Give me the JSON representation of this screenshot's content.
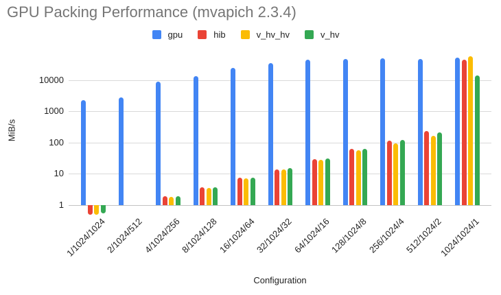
{
  "title": "GPU Packing Performance (mvapich 2.3.4)",
  "chart_data": {
    "type": "bar",
    "title": "GPU Packing Performance (mvapich 2.3.4)",
    "xlabel": "Configuration",
    "ylabel": "MiB/s",
    "y_scale": "log",
    "y_ticks": [
      1,
      10,
      100,
      1000,
      10000
    ],
    "ylim": [
      0.45,
      63000
    ],
    "grid": true,
    "legend_position": "top",
    "categories": [
      "1/1024/1024",
      "2/1024/512",
      "4/1024/256",
      "8/1024/128",
      "16/1024/64",
      "32/1024/32",
      "64/1024/16",
      "128/1024/8",
      "256/1024/4",
      "512/1024/2",
      "1024/1024/1"
    ],
    "series": [
      {
        "name": "gpu",
        "color": "#4285F4",
        "values": [
          2300,
          2800,
          8700,
          13000,
          24000,
          35000,
          44000,
          47000,
          50000,
          47000,
          52000
        ]
      },
      {
        "name": "hib",
        "color": "#EA4335",
        "values": [
          0.5,
          null,
          1.9,
          3.7,
          7.4,
          14,
          30,
          62,
          115,
          230,
          45000
        ]
      },
      {
        "name": "v_hv_hv",
        "color": "#FBBC04",
        "values": [
          0.5,
          null,
          1.8,
          3.6,
          7.3,
          14,
          28,
          56,
          95,
          160,
          56000
        ]
      },
      {
        "name": "v_hv",
        "color": "#34A853",
        "values": [
          0.55,
          null,
          1.95,
          3.8,
          7.6,
          15,
          31,
          63,
          120,
          215,
          14000
        ]
      }
    ]
  }
}
